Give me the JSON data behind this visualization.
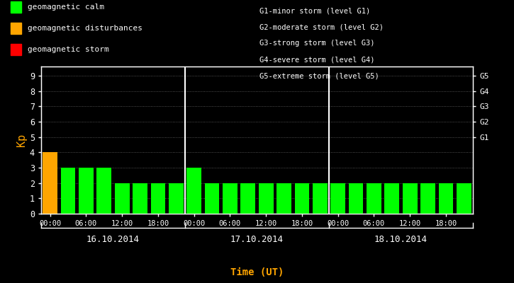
{
  "background_color": "#000000",
  "bar_data": [
    {
      "day": 0,
      "slot": 0,
      "kp": 4,
      "color": "#FFA500"
    },
    {
      "day": 0,
      "slot": 1,
      "kp": 3,
      "color": "#00FF00"
    },
    {
      "day": 0,
      "slot": 2,
      "kp": 3,
      "color": "#00FF00"
    },
    {
      "day": 0,
      "slot": 3,
      "kp": 3,
      "color": "#00FF00"
    },
    {
      "day": 0,
      "slot": 4,
      "kp": 2,
      "color": "#00FF00"
    },
    {
      "day": 0,
      "slot": 5,
      "kp": 2,
      "color": "#00FF00"
    },
    {
      "day": 0,
      "slot": 6,
      "kp": 2,
      "color": "#00FF00"
    },
    {
      "day": 0,
      "slot": 7,
      "kp": 2,
      "color": "#00FF00"
    },
    {
      "day": 1,
      "slot": 0,
      "kp": 3,
      "color": "#00FF00"
    },
    {
      "day": 1,
      "slot": 1,
      "kp": 2,
      "color": "#00FF00"
    },
    {
      "day": 1,
      "slot": 2,
      "kp": 2,
      "color": "#00FF00"
    },
    {
      "day": 1,
      "slot": 3,
      "kp": 2,
      "color": "#00FF00"
    },
    {
      "day": 1,
      "slot": 4,
      "kp": 2,
      "color": "#00FF00"
    },
    {
      "day": 1,
      "slot": 5,
      "kp": 2,
      "color": "#00FF00"
    },
    {
      "day": 1,
      "slot": 6,
      "kp": 2,
      "color": "#00FF00"
    },
    {
      "day": 1,
      "slot": 7,
      "kp": 2,
      "color": "#00FF00"
    },
    {
      "day": 2,
      "slot": 0,
      "kp": 2,
      "color": "#00FF00"
    },
    {
      "day": 2,
      "slot": 1,
      "kp": 2,
      "color": "#00FF00"
    },
    {
      "day": 2,
      "slot": 2,
      "kp": 2,
      "color": "#00FF00"
    },
    {
      "day": 2,
      "slot": 3,
      "kp": 2,
      "color": "#00FF00"
    },
    {
      "day": 2,
      "slot": 4,
      "kp": 2,
      "color": "#00FF00"
    },
    {
      "day": 2,
      "slot": 5,
      "kp": 2,
      "color": "#00FF00"
    },
    {
      "day": 2,
      "slot": 6,
      "kp": 2,
      "color": "#00FF00"
    },
    {
      "day": 2,
      "slot": 7,
      "kp": 2,
      "color": "#00FF00"
    }
  ],
  "day_labels": [
    "16.10.2014",
    "17.10.2014",
    "18.10.2014"
  ],
  "ylabel": "Kp",
  "xlabel": "Time (UT)",
  "ylabel_color": "#FFA500",
  "xlabel_color": "#FFA500",
  "yticks": [
    0,
    1,
    2,
    3,
    4,
    5,
    6,
    7,
    8,
    9
  ],
  "ylim_max": 9.6,
  "right_labels": [
    {
      "y": 5,
      "text": "G1"
    },
    {
      "y": 6,
      "text": "G2"
    },
    {
      "y": 7,
      "text": "G3"
    },
    {
      "y": 8,
      "text": "G4"
    },
    {
      "y": 9,
      "text": "G5"
    }
  ],
  "legend_items": [
    {
      "color": "#00FF00",
      "label": "geomagnetic calm"
    },
    {
      "color": "#FFA500",
      "label": "geomagnetic disturbances"
    },
    {
      "color": "#FF0000",
      "label": "geomagnetic storm"
    }
  ],
  "top_right_lines": [
    "G1-minor storm (level G1)",
    "G2-moderate storm (level G2)",
    "G3-strong storm (level G3)",
    "G4-severe storm (level G4)",
    "G5-extreme storm (level G5)"
  ],
  "text_color": "#FFFFFF",
  "axis_color": "#FFFFFF",
  "bar_width": 0.82,
  "slots_per_day": 8
}
